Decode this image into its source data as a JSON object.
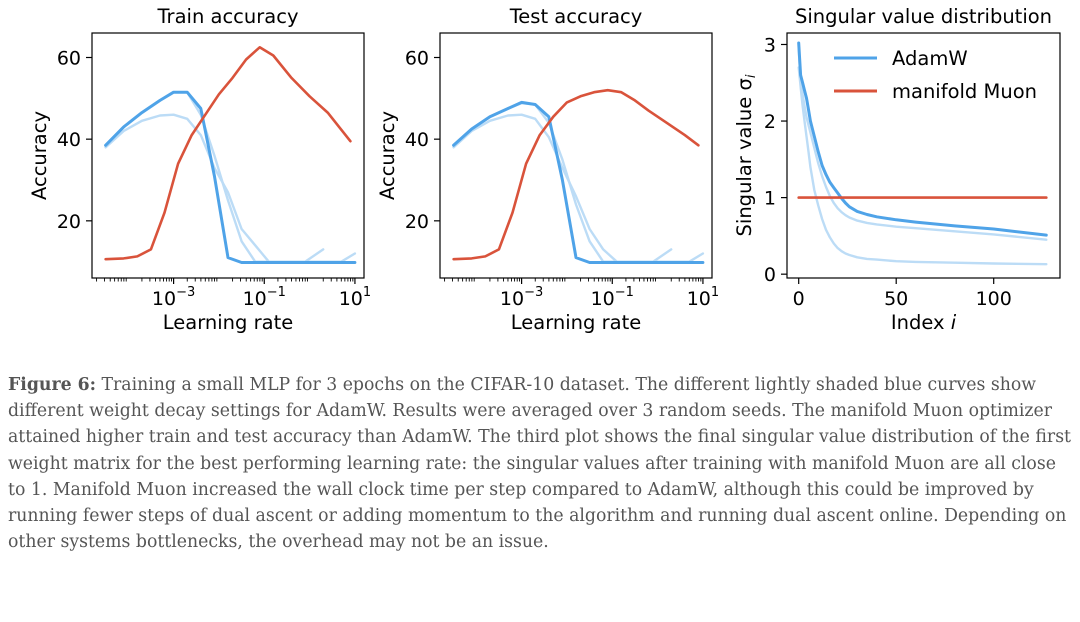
{
  "colors": {
    "adamw": "#4fa3e8",
    "adamw_light": "#bcdcf6",
    "muon": "#d9533b",
    "axis": "#000000",
    "caption_text": "#555555"
  },
  "chart_data": [
    {
      "id": "train",
      "type": "line",
      "title": "Train accuracy",
      "xlabel": "Learning rate",
      "ylabel": "Accuracy",
      "xscale": "log",
      "xlim": [
        -4.8,
        1.2
      ],
      "ylim": [
        6,
        66
      ],
      "xticks": [
        {
          "value": -3,
          "base": "10",
          "exp": "−3"
        },
        {
          "value": -1,
          "base": "10",
          "exp": "−1"
        },
        {
          "value": 1,
          "base": "10",
          "exp": "1"
        }
      ],
      "yticks": [
        20,
        40,
        60
      ],
      "series": [
        {
          "name": "AdamW (wd light 1)",
          "style": "light",
          "log_x": [
            -4.5,
            -4.1,
            -3.7,
            -3.3,
            -3.0,
            -2.7,
            -2.4,
            -2.1,
            -1.8,
            -1.5,
            -1.2,
            -0.9,
            -0.5,
            -0.1,
            0.3
          ],
          "y": [
            38,
            42,
            44.5,
            45.8,
            46,
            45,
            41,
            33,
            27,
            18,
            14,
            10,
            10,
            10,
            13
          ]
        },
        {
          "name": "AdamW (wd light 2)",
          "style": "light",
          "log_x": [
            -4.5,
            -4.1,
            -3.7,
            -3.3,
            -3.0,
            -2.7,
            -2.4,
            -2.1,
            -1.8,
            -1.5,
            -1.2,
            -0.9,
            -0.5,
            -0.1,
            0.3,
            0.7,
            1.0
          ],
          "y": [
            38.5,
            43,
            46.5,
            49.5,
            51.5,
            51.5,
            46,
            36,
            25,
            15,
            10,
            10,
            10,
            10,
            10,
            10,
            12
          ]
        },
        {
          "name": "AdamW",
          "style": "dark",
          "log_x": [
            -4.5,
            -4.1,
            -3.7,
            -3.3,
            -3.0,
            -2.7,
            -2.4,
            -2.1,
            -1.8,
            -1.5,
            -1.2,
            -0.9,
            -0.5,
            -0.1,
            0.3,
            0.7,
            1.0
          ],
          "y": [
            38.5,
            43,
            46.5,
            49.5,
            51.5,
            51.5,
            47.5,
            31,
            11,
            9.8,
            9.8,
            9.8,
            9.8,
            9.8,
            9.8,
            9.8,
            9.8
          ]
        },
        {
          "name": "manifold Muon",
          "style": "muon",
          "log_x": [
            -4.5,
            -4.1,
            -3.8,
            -3.5,
            -3.2,
            -2.9,
            -2.6,
            -2.3,
            -2.0,
            -1.7,
            -1.4,
            -1.1,
            -0.8,
            -0.4,
            0.0,
            0.4,
            0.9
          ],
          "y": [
            10.6,
            10.8,
            11.3,
            13,
            22,
            34,
            41,
            46,
            51,
            55,
            59.5,
            62.5,
            60.5,
            55,
            50.5,
            46.5,
            39.5
          ]
        }
      ]
    },
    {
      "id": "test",
      "type": "line",
      "title": "Test accuracy",
      "xlabel": "Learning rate",
      "ylabel": "Accuracy",
      "xscale": "log",
      "xlim": [
        -4.8,
        1.2
      ],
      "ylim": [
        6,
        66
      ],
      "xticks": [
        {
          "value": -3,
          "base": "10",
          "exp": "−3"
        },
        {
          "value": -1,
          "base": "10",
          "exp": "−1"
        },
        {
          "value": 1,
          "base": "10",
          "exp": "1"
        }
      ],
      "yticks": [
        20,
        40,
        60
      ],
      "series": [
        {
          "name": "AdamW (wd light 1)",
          "style": "light",
          "log_x": [
            -4.5,
            -4.1,
            -3.7,
            -3.3,
            -3.0,
            -2.7,
            -2.4,
            -2.1,
            -1.8,
            -1.5,
            -1.2,
            -0.9,
            -0.5,
            -0.1,
            0.3
          ],
          "y": [
            38,
            42,
            44.5,
            45.8,
            46,
            45,
            40.5,
            33,
            26,
            18,
            13,
            10,
            10,
            10,
            13
          ]
        },
        {
          "name": "AdamW (wd light 2)",
          "style": "light",
          "log_x": [
            -4.5,
            -4.1,
            -3.7,
            -3.3,
            -3.0,
            -2.7,
            -2.4,
            -2.1,
            -1.8,
            -1.5,
            -1.2,
            -0.9,
            -0.5,
            -0.1,
            0.3,
            0.7,
            1.0
          ],
          "y": [
            38.5,
            42.5,
            45.5,
            47.5,
            48.8,
            48.5,
            44,
            35,
            24,
            15,
            10,
            10,
            10,
            10,
            10,
            10,
            12
          ]
        },
        {
          "name": "AdamW",
          "style": "dark",
          "log_x": [
            -4.5,
            -4.1,
            -3.7,
            -3.3,
            -3.0,
            -2.7,
            -2.4,
            -2.1,
            -1.8,
            -1.5,
            -1.2,
            -0.9,
            -0.5,
            -0.1,
            0.3,
            0.7,
            1.0
          ],
          "y": [
            38.5,
            42.5,
            45.5,
            47.5,
            49,
            48.5,
            45.5,
            30,
            11,
            9.8,
            9.8,
            9.8,
            9.8,
            9.8,
            9.8,
            9.8,
            9.8
          ]
        },
        {
          "name": "manifold Muon",
          "style": "muon",
          "log_x": [
            -4.5,
            -4.1,
            -3.8,
            -3.5,
            -3.2,
            -2.9,
            -2.6,
            -2.3,
            -2.0,
            -1.7,
            -1.4,
            -1.1,
            -0.8,
            -0.5,
            -0.2,
            0.2,
            0.6,
            0.9
          ],
          "y": [
            10.6,
            10.8,
            11.3,
            13,
            22,
            34,
            41,
            45.5,
            49,
            50.5,
            51.5,
            52,
            51.5,
            49.5,
            47,
            44,
            41,
            38.5
          ]
        }
      ]
    },
    {
      "id": "singular",
      "type": "line",
      "title": "Singular value distribution",
      "xlabel": "Index i",
      "ylabel": "Singular value σi",
      "xlim": [
        -6,
        134
      ],
      "ylim": [
        -0.05,
        3.15
      ],
      "xticks": [
        0,
        50,
        100
      ],
      "yticks": [
        0,
        1,
        2,
        3
      ],
      "legend": {
        "placement": "top-right",
        "entries": [
          "AdamW",
          "manifold Muon"
        ]
      },
      "series": [
        {
          "name": "AdamW (wd light 1)",
          "style": "light",
          "x": [
            0,
            1,
            2,
            3,
            4,
            5,
            6,
            8,
            10,
            12,
            14,
            16,
            18,
            20,
            22,
            24,
            26,
            30,
            35,
            40,
            50,
            60,
            80,
            100,
            127
          ],
          "y": [
            2.7,
            2.45,
            2.2,
            2.0,
            1.8,
            1.6,
            1.4,
            1.1,
            0.9,
            0.72,
            0.58,
            0.48,
            0.4,
            0.34,
            0.3,
            0.27,
            0.25,
            0.22,
            0.2,
            0.19,
            0.17,
            0.16,
            0.15,
            0.14,
            0.13
          ]
        },
        {
          "name": "AdamW (wd light 2)",
          "style": "light",
          "x": [
            0,
            1,
            2,
            3,
            4,
            6,
            8,
            10,
            12,
            14,
            16,
            18,
            20,
            22,
            24,
            26,
            30,
            35,
            40,
            50,
            60,
            80,
            100,
            127
          ],
          "y": [
            2.95,
            2.5,
            2.35,
            2.2,
            2.05,
            1.85,
            1.65,
            1.45,
            1.28,
            1.14,
            1.02,
            0.93,
            0.86,
            0.81,
            0.77,
            0.74,
            0.7,
            0.67,
            0.65,
            0.62,
            0.6,
            0.56,
            0.52,
            0.45
          ]
        },
        {
          "name": "AdamW",
          "style": "dark",
          "x": [
            0,
            1,
            2,
            3,
            4,
            5,
            6,
            8,
            10,
            12,
            14,
            16,
            18,
            20,
            22,
            24,
            26,
            30,
            35,
            40,
            50,
            60,
            80,
            100,
            127
          ],
          "y": [
            3.02,
            2.6,
            2.5,
            2.4,
            2.3,
            2.15,
            2.0,
            1.8,
            1.6,
            1.42,
            1.3,
            1.2,
            1.13,
            1.06,
            0.99,
            0.93,
            0.88,
            0.82,
            0.78,
            0.75,
            0.71,
            0.68,
            0.63,
            0.59,
            0.51
          ]
        },
        {
          "name": "manifold Muon",
          "style": "muon",
          "x": [
            0,
            127
          ],
          "y": [
            1.0,
            1.0
          ]
        }
      ]
    }
  ],
  "caption": {
    "label": "Figure 6:",
    "text": " Training a small MLP for 3 epochs on the CIFAR-10 dataset. The different lightly shaded blue curves show different weight decay settings for AdamW. Results were averaged over 3 random seeds. The manifold Muon optimizer attained higher train and test accuracy than AdamW. The third plot shows the final singular value distribution of the first weight matrix for the best performing learning rate: the singular values after training with manifold Muon are all close to 1. Manifold Muon increased the wall clock time per step compared to AdamW, although this could be improved by running fewer steps of dual ascent or adding momentum to the algorithm and running dual ascent online. Depending on other systems bottlenecks, the overhead may not be an issue."
  }
}
